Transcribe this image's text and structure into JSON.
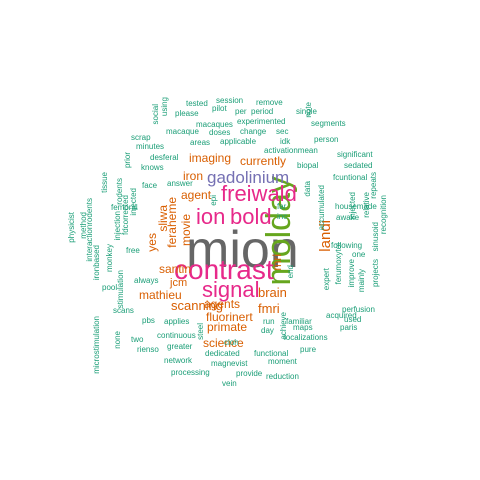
{
  "palette": {
    "largest": "#666666",
    "large": "#e7298a",
    "medium_large": "#7570b3",
    "medium": "#d95f02",
    "small_green": "#1b9e77",
    "green_large": "#66a61e"
  },
  "words": [
    {
      "text": "mion",
      "color": "#666666"
    },
    {
      "text": "molday",
      "color": "#66a61e"
    },
    {
      "text": "contrast",
      "color": "#e7298a"
    },
    {
      "text": "freiwald",
      "color": "#e7298a"
    },
    {
      "text": "ion",
      "color": "#e7298a"
    },
    {
      "text": "bold",
      "color": "#e7298a"
    },
    {
      "text": "signal",
      "color": "#e7298a"
    },
    {
      "text": "gadolinium",
      "color": "#7570b3"
    },
    {
      "text": "landi",
      "color": "#d95f02"
    },
    {
      "text": "mri",
      "color": "#d95f02"
    },
    {
      "text": "brain",
      "color": "#d95f02"
    },
    {
      "text": "fmri",
      "color": "#d95f02"
    },
    {
      "text": "agents",
      "color": "#d95f02"
    },
    {
      "text": "scanning",
      "color": "#d95f02"
    },
    {
      "text": "science",
      "color": "#d95f02"
    },
    {
      "text": "primate",
      "color": "#d95f02"
    },
    {
      "text": "fluorinert",
      "color": "#d95f02"
    },
    {
      "text": "mathieu",
      "color": "#d95f02"
    },
    {
      "text": "santin",
      "color": "#d95f02"
    },
    {
      "text": "jcm",
      "color": "#d95f02"
    },
    {
      "text": "yes",
      "color": "#d95f02"
    },
    {
      "text": "sliwa",
      "color": "#d95f02"
    },
    {
      "text": "feraheme",
      "color": "#d95f02"
    },
    {
      "text": "movie",
      "color": "#d95f02"
    },
    {
      "text": "agent",
      "color": "#d95f02"
    },
    {
      "text": "iron",
      "color": "#d95f02"
    },
    {
      "text": "imaging",
      "color": "#d95f02"
    },
    {
      "text": "currently",
      "color": "#d95f02"
    },
    {
      "text": "tested",
      "color": "#1b9e77"
    },
    {
      "text": "session",
      "color": "#1b9e77"
    },
    {
      "text": "remove",
      "color": "#1b9e77"
    },
    {
      "text": "pilot",
      "color": "#1b9e77"
    },
    {
      "text": "per",
      "color": "#1b9e77"
    },
    {
      "text": "period",
      "color": "#1b9e77"
    },
    {
      "text": "please",
      "color": "#1b9e77"
    },
    {
      "text": "experimented",
      "color": "#1b9e77"
    },
    {
      "text": "single",
      "color": "#1b9e77"
    },
    {
      "text": "using",
      "color": "#1b9e77"
    },
    {
      "text": "social",
      "color": "#1b9e77"
    },
    {
      "text": "macaques",
      "color": "#1b9e77"
    },
    {
      "text": "macaque",
      "color": "#1b9e77"
    },
    {
      "text": "doses",
      "color": "#1b9e77"
    },
    {
      "text": "change",
      "color": "#1b9e77"
    },
    {
      "text": "sec",
      "color": "#1b9e77"
    },
    {
      "text": "note",
      "color": "#1b9e77"
    },
    {
      "text": "segments",
      "color": "#1b9e77"
    },
    {
      "text": "scrap",
      "color": "#1b9e77"
    },
    {
      "text": "areas",
      "color": "#1b9e77"
    },
    {
      "text": "applicable",
      "color": "#1b9e77"
    },
    {
      "text": "idk",
      "color": "#1b9e77"
    },
    {
      "text": "person",
      "color": "#1b9e77"
    },
    {
      "text": "minutes",
      "color": "#1b9e77"
    },
    {
      "text": "prior",
      "color": "#1b9e77"
    },
    {
      "text": "activationmean",
      "color": "#1b9e77"
    },
    {
      "text": "significant",
      "color": "#1b9e77"
    },
    {
      "text": "desferal",
      "color": "#1b9e77"
    },
    {
      "text": "knows",
      "color": "#1b9e77"
    },
    {
      "text": "biopal",
      "color": "#1b9e77"
    },
    {
      "text": "sedated",
      "color": "#1b9e77"
    },
    {
      "text": "face",
      "color": "#1b9e77"
    },
    {
      "text": "answer",
      "color": "#1b9e77"
    },
    {
      "text": "epi",
      "color": "#1b9e77"
    },
    {
      "text": "data",
      "color": "#1b9e77"
    },
    {
      "text": "repeats",
      "color": "#1b9e77"
    },
    {
      "text": "fcuntional",
      "color": "#1b9e77"
    },
    {
      "text": "tissue",
      "color": "#1b9e77"
    },
    {
      "text": "rodents",
      "color": "#1b9e77"
    },
    {
      "text": "interactionrodents",
      "color": "#1b9e77"
    },
    {
      "text": "fdcorrected",
      "color": "#1b9e77"
    },
    {
      "text": "injected",
      "color": "#1b9e77"
    },
    {
      "text": "far",
      "color": "#1b9e77"
    },
    {
      "text": "inc",
      "color": "#1b9e77"
    },
    {
      "text": "accumulated",
      "color": "#1b9e77"
    },
    {
      "text": "housemade",
      "color": "#1b9e77"
    },
    {
      "text": "relative",
      "color": "#1b9e77"
    },
    {
      "text": "awake",
      "color": "#1b9e77"
    },
    {
      "text": "injected",
      "color": "#1b9e77"
    },
    {
      "text": "physicist",
      "color": "#1b9e77"
    },
    {
      "text": "method",
      "color": "#1b9e77"
    },
    {
      "text": "ironbased",
      "color": "#1b9e77"
    },
    {
      "text": "injection",
      "color": "#1b9e77"
    },
    {
      "text": "free",
      "color": "#1b9e77"
    },
    {
      "text": "always",
      "color": "#1b9e77"
    },
    {
      "text": "following",
      "color": "#1b9e77"
    },
    {
      "text": "one",
      "color": "#1b9e77"
    },
    {
      "text": "sinusoid",
      "color": "#1b9e77"
    },
    {
      "text": "recognition",
      "color": "#1b9e77"
    },
    {
      "text": "pool",
      "color": "#1b9e77"
    },
    {
      "text": "monkey",
      "color": "#1b9e77"
    },
    {
      "text": "stimulation",
      "color": "#1b9e77"
    },
    {
      "text": "expert",
      "color": "#1b9e77"
    },
    {
      "text": "ferumoxytol",
      "color": "#1b9e77"
    },
    {
      "text": "improve",
      "color": "#1b9e77"
    },
    {
      "text": "mainly",
      "color": "#1b9e77"
    },
    {
      "text": "projects",
      "color": "#1b9e77"
    },
    {
      "text": "scans",
      "color": "#1b9e77"
    },
    {
      "text": "end",
      "color": "#1b9e77"
    },
    {
      "text": "acquired",
      "color": "#1b9e77"
    },
    {
      "text": "perfusion",
      "color": "#1b9e77"
    },
    {
      "text": "microstimulation",
      "color": "#1b9e77"
    },
    {
      "text": "pbs",
      "color": "#1b9e77"
    },
    {
      "text": "applies",
      "color": "#1b9e77"
    },
    {
      "text": "steel",
      "color": "#1b9e77"
    },
    {
      "text": "run",
      "color": "#1b9e77"
    },
    {
      "text": "familiar",
      "color": "#1b9e77"
    },
    {
      "text": "used",
      "color": "#1b9e77"
    },
    {
      "text": "none",
      "color": "#1b9e77"
    },
    {
      "text": "two",
      "color": "#1b9e77"
    },
    {
      "text": "continuous",
      "color": "#1b9e77"
    },
    {
      "text": "day",
      "color": "#1b9e77"
    },
    {
      "text": "achieve",
      "color": "#1b9e77"
    },
    {
      "text": "maps",
      "color": "#1b9e77"
    },
    {
      "text": "paris",
      "color": "#1b9e77"
    },
    {
      "text": "rienso",
      "color": "#1b9e77"
    },
    {
      "text": "greater",
      "color": "#1b9e77"
    },
    {
      "text": "cloh",
      "color": "#1b9e77"
    },
    {
      "text": "localizations",
      "color": "#1b9e77"
    },
    {
      "text": "dedicated",
      "color": "#1b9e77"
    },
    {
      "text": "functional",
      "color": "#1b9e77"
    },
    {
      "text": "pure",
      "color": "#1b9e77"
    },
    {
      "text": "network",
      "color": "#1b9e77"
    },
    {
      "text": "magnevist",
      "color": "#1b9e77"
    },
    {
      "text": "moment",
      "color": "#1b9e77"
    },
    {
      "text": "processing",
      "color": "#1b9e77"
    },
    {
      "text": "provide",
      "color": "#1b9e77"
    },
    {
      "text": "reduction",
      "color": "#1b9e77"
    },
    {
      "text": "vein",
      "color": "#1b9e77"
    },
    {
      "text": "femoral",
      "color": "#1b9e77"
    }
  ]
}
